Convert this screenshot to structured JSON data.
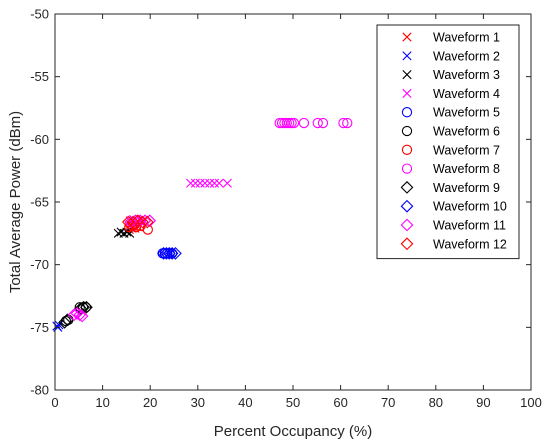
{
  "chart_data": {
    "type": "scatter",
    "xlabel": "Percent Occupancy (%)",
    "ylabel": "Total Average Power (dBm)",
    "xlim": [
      0,
      100
    ],
    "ylim": [
      -80,
      -50
    ],
    "xticks": [
      "0",
      "10",
      "20",
      "30",
      "40",
      "50",
      "60",
      "70",
      "80",
      "90",
      "100"
    ],
    "yticks": [
      "-80",
      "-75",
      "-70",
      "-65",
      "-60",
      "-55",
      "-50"
    ],
    "grid": false,
    "legend_position": "top-right",
    "series": [
      {
        "name": "Waveform 1",
        "marker": "x",
        "color": "#ff0000",
        "points": [
          [
            15.6,
            -67.2
          ],
          [
            16.2,
            -67.1
          ],
          [
            16.8,
            -67.1
          ],
          [
            17.5,
            -67.0
          ],
          [
            15.9,
            -66.8
          ]
        ]
      },
      {
        "name": "Waveform 2",
        "marker": "x",
        "color": "#0000ff",
        "points": [
          [
            0.4,
            -74.9
          ],
          [
            0.6,
            -75.0
          ],
          [
            0.8,
            -74.8
          ]
        ]
      },
      {
        "name": "Waveform 3",
        "marker": "x",
        "color": "#000000",
        "points": [
          [
            13.3,
            -67.5
          ],
          [
            13.9,
            -67.4
          ],
          [
            14.5,
            -67.5
          ],
          [
            15.1,
            -67.4
          ],
          [
            15.7,
            -67.5
          ]
        ]
      },
      {
        "name": "Waveform 4",
        "marker": "x",
        "color": "#ff00ff",
        "points": [
          [
            15.8,
            -66.5
          ],
          [
            16.5,
            -66.4
          ],
          [
            17.3,
            -66.5
          ],
          [
            18.0,
            -66.4
          ],
          [
            28.5,
            -63.5
          ],
          [
            29.5,
            -63.5
          ],
          [
            30.5,
            -63.5
          ],
          [
            31.5,
            -63.5
          ],
          [
            32.5,
            -63.5
          ],
          [
            33.5,
            -63.5
          ],
          [
            34.5,
            -63.5
          ],
          [
            36.2,
            -63.5
          ]
        ]
      },
      {
        "name": "Waveform 5",
        "marker": "o",
        "color": "#0000ff",
        "points": [
          [
            22.6,
            -69.1
          ],
          [
            23.1,
            -69.1
          ],
          [
            23.6,
            -69.1
          ],
          [
            24.1,
            -69.1
          ],
          [
            24.6,
            -69.1
          ]
        ]
      },
      {
        "name": "Waveform 6",
        "marker": "o",
        "color": "#000000",
        "points": [
          [
            2.3,
            -74.5
          ],
          [
            2.8,
            -74.4
          ],
          [
            5.2,
            -73.4
          ],
          [
            5.9,
            -73.4
          ],
          [
            6.5,
            -73.4
          ]
        ]
      },
      {
        "name": "Waveform 7",
        "marker": "o",
        "color": "#ff0000",
        "points": [
          [
            15.6,
            -67.0
          ],
          [
            16.3,
            -66.9
          ],
          [
            17.0,
            -67.0
          ],
          [
            18.0,
            -66.9
          ],
          [
            19.5,
            -67.2
          ]
        ]
      },
      {
        "name": "Waveform 8",
        "marker": "o",
        "color": "#ff00ff",
        "points": [
          [
            47.2,
            -58.7
          ],
          [
            47.7,
            -58.7
          ],
          [
            48.2,
            -58.7
          ],
          [
            48.7,
            -58.7
          ],
          [
            49.2,
            -58.7
          ],
          [
            49.7,
            -58.7
          ],
          [
            50.2,
            -58.7
          ],
          [
            52.3,
            -58.7
          ],
          [
            55.2,
            -58.7
          ],
          [
            56.3,
            -58.7
          ],
          [
            60.6,
            -58.7
          ],
          [
            61.4,
            -58.7
          ]
        ]
      },
      {
        "name": "Waveform 9",
        "marker": "d",
        "color": "#000000",
        "points": [
          [
            2.0,
            -74.6
          ],
          [
            2.6,
            -74.4
          ],
          [
            5.4,
            -73.5
          ],
          [
            6.0,
            -73.4
          ],
          [
            6.6,
            -73.4
          ]
        ]
      },
      {
        "name": "Waveform 10",
        "marker": "d",
        "color": "#0000ff",
        "points": [
          [
            22.8,
            -69.1
          ],
          [
            23.4,
            -69.1
          ],
          [
            24.0,
            -69.1
          ],
          [
            24.6,
            -69.1
          ],
          [
            25.3,
            -69.1
          ]
        ]
      },
      {
        "name": "Waveform 11",
        "marker": "d",
        "color": "#ff00ff",
        "points": [
          [
            4.0,
            -74.0
          ],
          [
            4.6,
            -73.9
          ],
          [
            5.2,
            -74.0
          ],
          [
            5.7,
            -74.1
          ],
          [
            15.9,
            -66.6
          ],
          [
            16.9,
            -66.5
          ],
          [
            17.9,
            -66.5
          ],
          [
            18.9,
            -66.5
          ],
          [
            19.9,
            -66.5
          ]
        ]
      },
      {
        "name": "Waveform 12",
        "marker": "d",
        "color": "#ff0000",
        "points": [
          [
            15.4,
            -66.6
          ],
          [
            16.4,
            -66.6
          ],
          [
            17.4,
            -66.5
          ],
          [
            18.4,
            -66.6
          ],
          [
            19.4,
            -66.6
          ]
        ]
      }
    ]
  }
}
